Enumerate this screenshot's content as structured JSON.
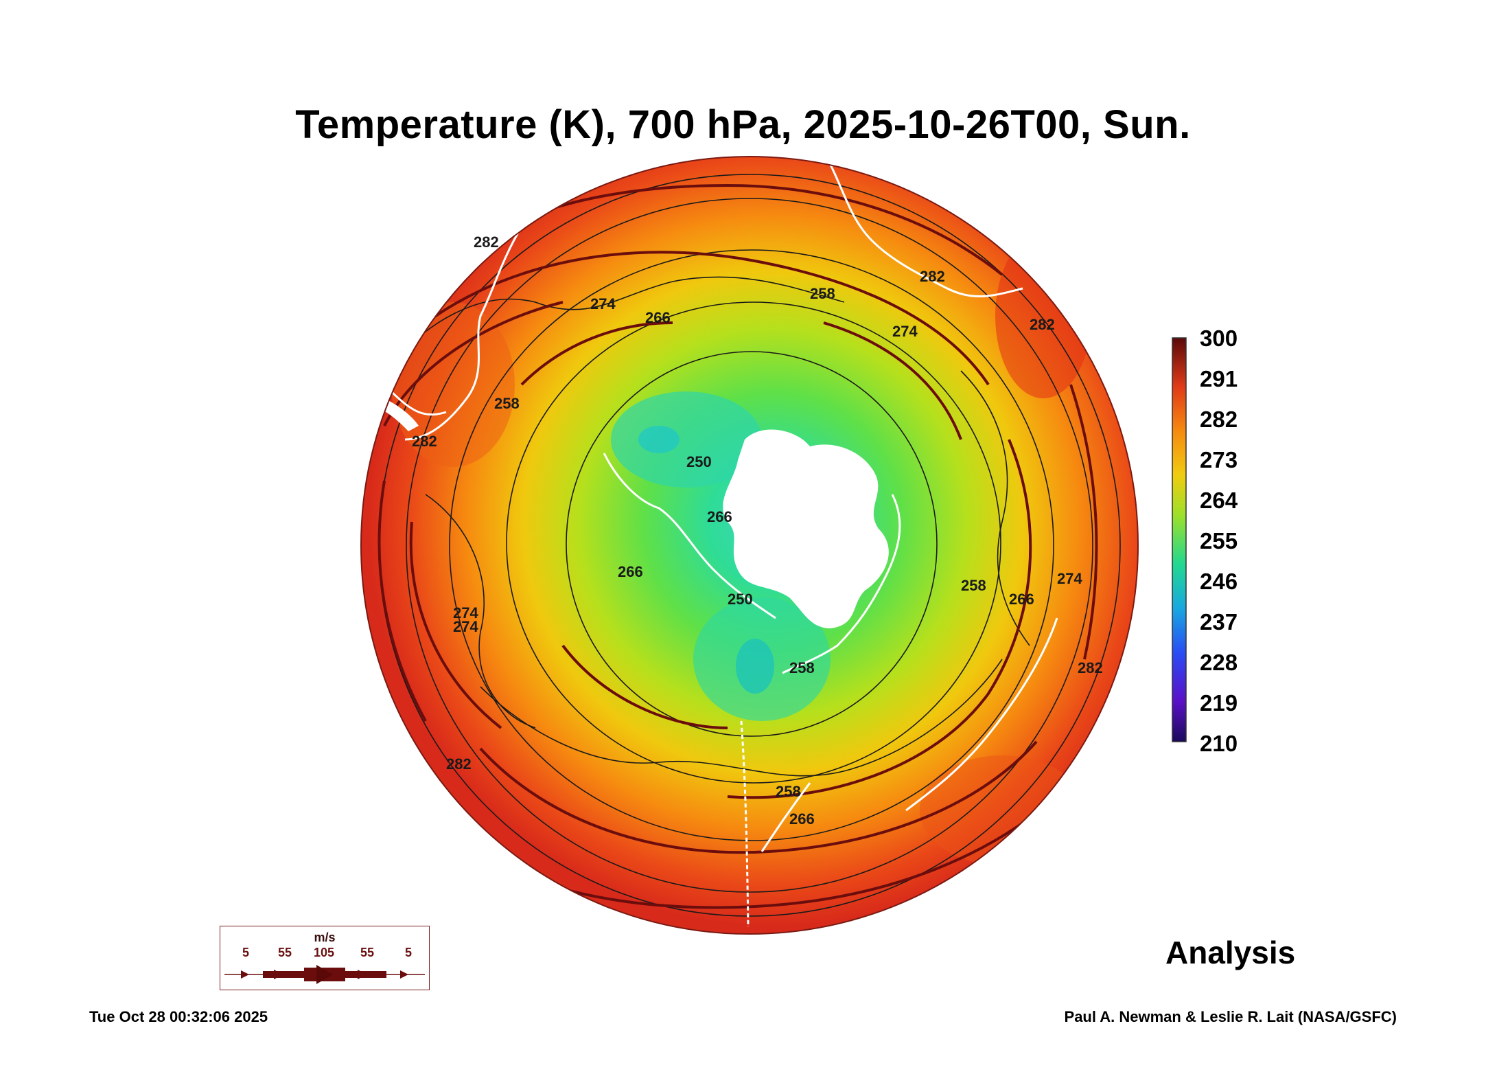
{
  "title": "Temperature (K), 700 hPa, 2025-10-26T00, Sun.",
  "colorbar": {
    "ticks": [
      "300",
      "291",
      "282",
      "273",
      "264",
      "255",
      "246",
      "237",
      "228",
      "219",
      "210"
    ],
    "min": 210,
    "max": 300
  },
  "contour_labels": [
    "282",
    "274",
    "266",
    "258",
    "250",
    "258",
    "266",
    "274",
    "282",
    "282",
    "274",
    "266",
    "258",
    "250",
    "258",
    "266",
    "274",
    "282",
    "282",
    "274",
    "266",
    "258",
    "282"
  ],
  "wind_legend": {
    "unit": "m/s",
    "speeds": [
      "5",
      "55",
      "105",
      "55",
      "5"
    ]
  },
  "analysis_label": "Analysis",
  "timestamp": "Tue Oct 28 00:32:06 2025",
  "credit": "Paul A. Newman & Leslie R. Lait (NASA/GSFC)",
  "colors": {
    "map_outer": "#e0301a",
    "map_mid": "#e8d40d",
    "map_inner": "#24dc8a",
    "streamline": "#6b0d0d",
    "coastline": "#ffffff"
  }
}
